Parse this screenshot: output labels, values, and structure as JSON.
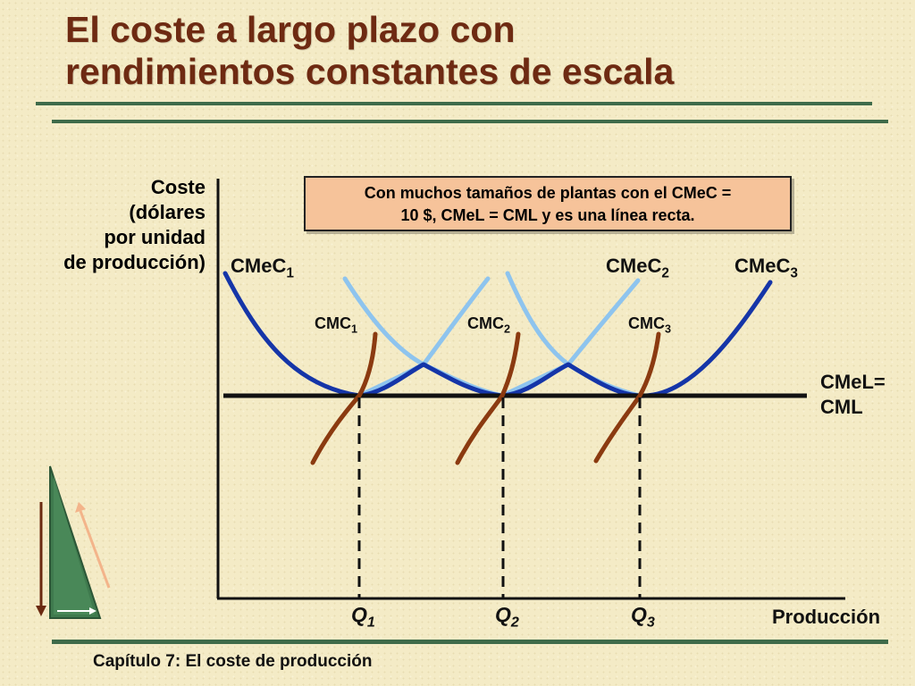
{
  "slide": {
    "title_line1": "El coste a largo plazo con",
    "title_line2": "rendimientos constantes de escala",
    "footer": "Capítulo 7: El coste de producción"
  },
  "axes": {
    "ylabel_lines": [
      "Coste",
      "(dólares",
      "por unidad",
      "de producción)"
    ],
    "xlabel": "Producción"
  },
  "callout": {
    "line1": "Con muchos tamaños de plantas con el CMeC =",
    "line2": "10 $, CMeL = CML y es una línea recta."
  },
  "curves": {
    "cmec": [
      {
        "base": "CMeC",
        "sub": "1"
      },
      {
        "base": "CMeC",
        "sub": "2"
      },
      {
        "base": "CMeC",
        "sub": "3"
      }
    ],
    "cmc": [
      {
        "base": "CMC",
        "sub": "1"
      },
      {
        "base": "CMC",
        "sub": "2"
      },
      {
        "base": "CMC",
        "sub": "3"
      }
    ],
    "long_run_line1": "CMeL=",
    "long_run_line2": "CML"
  },
  "quantities": [
    {
      "base": "Q",
      "sub": "1"
    },
    {
      "base": "Q",
      "sub": "2"
    },
    {
      "base": "Q",
      "sub": "3"
    }
  ],
  "colors": {
    "title": "#6e2a12",
    "rule": "#3f6b4a",
    "cmec_dark": "#1535a8",
    "cmec_light": "#8ec4ee",
    "cmc": "#8b3a10",
    "callout_bg": "#f6c39a"
  }
}
